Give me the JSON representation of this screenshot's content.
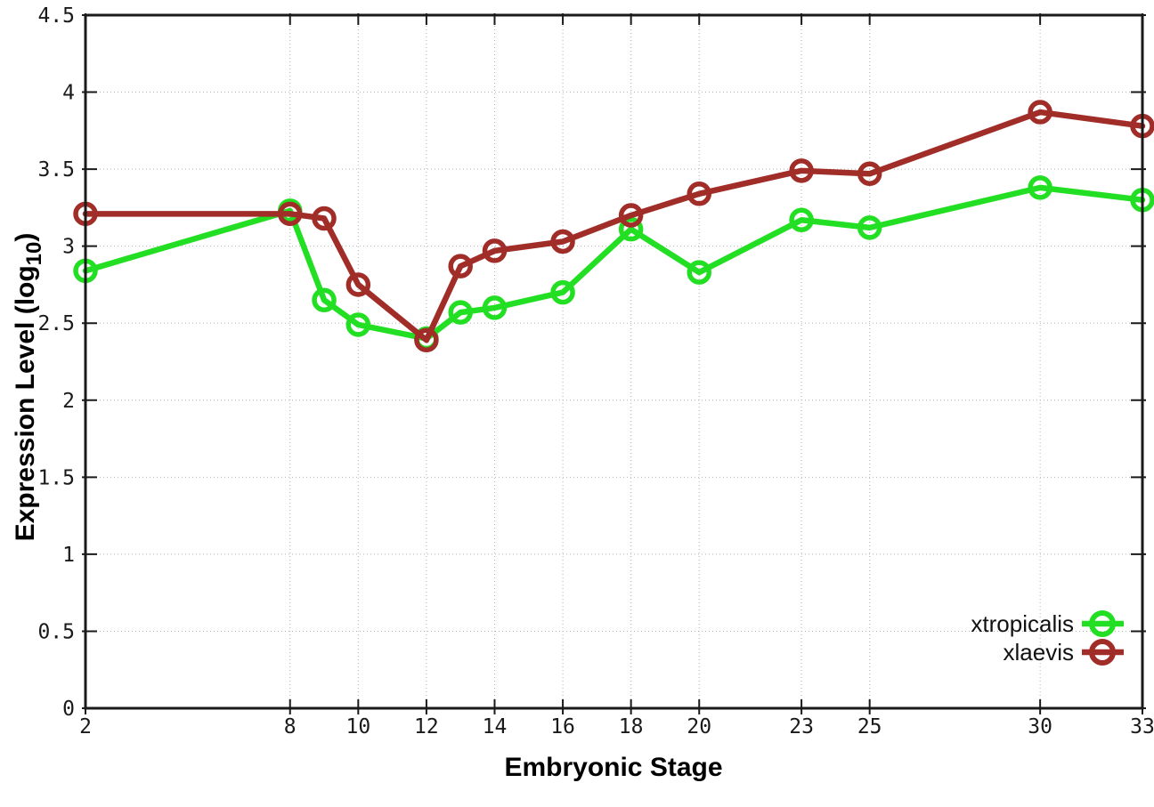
{
  "chart_data": {
    "type": "line",
    "title": "",
    "xlabel": "Embryonic Stage",
    "ylabel": "Expression Level (log10)",
    "ylabel_parts": {
      "prefix": "Expression Level (log",
      "sub": "10",
      "suffix": ")"
    },
    "x": [
      2,
      8,
      9,
      10,
      12,
      13,
      14,
      16,
      18,
      20,
      23,
      25,
      30,
      33
    ],
    "series": [
      {
        "name": "xtropicalis",
        "color": "#23df23",
        "marker": "open-circle",
        "values": [
          2.84,
          3.23,
          2.65,
          2.49,
          2.4,
          2.57,
          2.6,
          2.7,
          3.11,
          2.83,
          3.17,
          3.12,
          3.38,
          3.3
        ]
      },
      {
        "name": "xlaevis",
        "color": "#a12d28",
        "marker": "open-circle",
        "values": [
          3.21,
          3.21,
          3.18,
          2.75,
          2.39,
          2.87,
          2.97,
          3.03,
          3.2,
          3.34,
          3.49,
          3.47,
          3.87,
          3.78
        ]
      }
    ],
    "xlim": [
      2,
      33
    ],
    "ylim": [
      0,
      4.5
    ],
    "xticks": {
      "values": [
        2,
        8,
        10,
        12,
        14,
        16,
        18,
        20,
        23,
        25,
        30,
        33
      ],
      "labels": [
        "2",
        "8",
        "10",
        "12",
        "14",
        "16",
        "18",
        "20",
        "23",
        "25",
        "30",
        "33"
      ]
    },
    "yticks": {
      "values": [
        0,
        0.5,
        1,
        1.5,
        2,
        2.5,
        3,
        3.5,
        4,
        4.5
      ],
      "labels": [
        "0",
        "0.5",
        "1",
        "1.5",
        "2",
        "2.5",
        "3",
        "3.5",
        "4",
        "4.5"
      ]
    },
    "grid": true,
    "legend_position": "inside-bottom-right",
    "legend": [
      "xtropicalis",
      "xlaevis"
    ]
  },
  "style": {
    "background": "#ffffff",
    "axis_color": "#1a1a1a",
    "grid_color": "#b4b4b4",
    "tick_label_color": "#1a1a1a"
  }
}
